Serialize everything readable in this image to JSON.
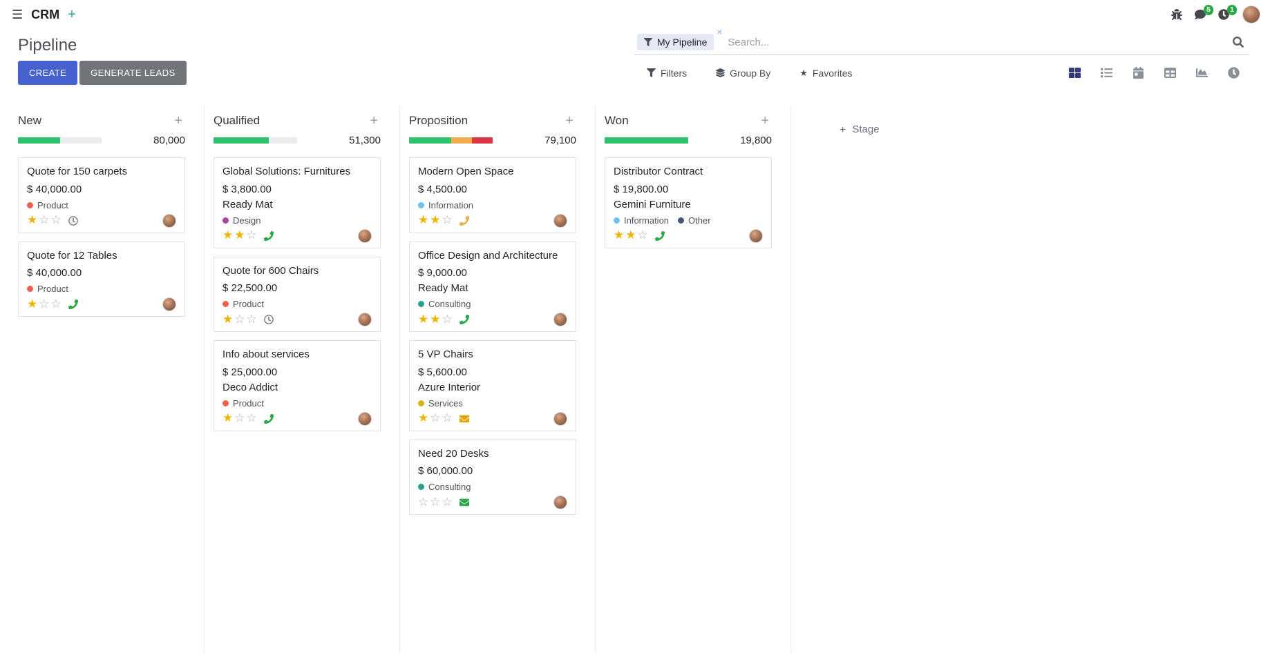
{
  "icons": {
    "menu": "☰",
    "plus": "+",
    "close": "×",
    "star_filled": "★",
    "star_empty": "☆"
  },
  "navbar": {
    "app_name": "CRM",
    "messages_badge": "5",
    "activities_badge": "1"
  },
  "control_panel": {
    "title": "Pipeline",
    "search": {
      "facet": "My Pipeline",
      "placeholder": "Search..."
    },
    "create_label": "CREATE",
    "generate_leads_label": "GENERATE LEADS",
    "filters_label": "Filters",
    "group_by_label": "Group By",
    "favorites_label": "Favorites"
  },
  "board": {
    "add_stage_label": "Stage",
    "columns": [
      {
        "name": "New",
        "total": "80,000",
        "progress": [
          {
            "color": "#2dc26b",
            "pct": 50
          }
        ],
        "cards": [
          {
            "title": "Quote for 150 carpets",
            "amount": "$ 40,000.00",
            "tags": [
              {
                "label": "Product",
                "color": "#f06050"
              }
            ],
            "stars": 1,
            "activity": {
              "type": "clock",
              "color": "#6e6e6e"
            }
          },
          {
            "title": "Quote for 12 Tables",
            "amount": "$ 40,000.00",
            "tags": [
              {
                "label": "Product",
                "color": "#f06050"
              }
            ],
            "stars": 1,
            "activity": {
              "type": "phone",
              "color": "#28a745"
            }
          }
        ]
      },
      {
        "name": "Qualified",
        "total": "51,300",
        "progress": [
          {
            "color": "#2dc26b",
            "pct": 66
          }
        ],
        "cards": [
          {
            "title": "Global Solutions: Furnitures",
            "amount": "$ 3,800.00",
            "partner": "Ready Mat",
            "tags": [
              {
                "label": "Design",
                "color": "#a9469c"
              }
            ],
            "stars": 2,
            "activity": {
              "type": "phone",
              "color": "#28a745"
            }
          },
          {
            "title": "Quote for 600 Chairs",
            "amount": "$ 22,500.00",
            "tags": [
              {
                "label": "Product",
                "color": "#f06050"
              }
            ],
            "stars": 1,
            "activity": {
              "type": "clock",
              "color": "#6e6e6e"
            }
          },
          {
            "title": "Info about services",
            "amount": "$ 25,000.00",
            "partner": "Deco Addict",
            "tags": [
              {
                "label": "Product",
                "color": "#f06050"
              }
            ],
            "stars": 1,
            "activity": {
              "type": "phone",
              "color": "#28a745"
            }
          }
        ]
      },
      {
        "name": "Proposition",
        "total": "79,100",
        "progress": [
          {
            "color": "#2dc26b",
            "pct": 50
          },
          {
            "color": "#f0ad4e",
            "pct": 25
          },
          {
            "color": "#dc3545",
            "pct": 25
          }
        ],
        "cards": [
          {
            "title": "Modern Open Space",
            "amount": "$ 4,500.00",
            "tags": [
              {
                "label": "Information",
                "color": "#6cc1ed"
              }
            ],
            "stars": 2,
            "activity": {
              "type": "phone",
              "color": "#f0ad4e"
            }
          },
          {
            "title": "Office Design and Architecture",
            "amount": "$ 9,000.00",
            "partner": "Ready Mat",
            "tags": [
              {
                "label": "Consulting",
                "color": "#2c9e8f"
              }
            ],
            "stars": 2,
            "activity": {
              "type": "phone",
              "color": "#28a745"
            }
          },
          {
            "title": "5 VP Chairs",
            "amount": "$ 5,600.00",
            "partner": "Azure Interior",
            "tags": [
              {
                "label": "Services",
                "color": "#d6b31f"
              }
            ],
            "stars": 1,
            "activity": {
              "type": "envelope",
              "color": "#e2a600"
            }
          },
          {
            "title": "Need 20 Desks",
            "amount": "$ 60,000.00",
            "tags": [
              {
                "label": "Consulting",
                "color": "#2c9e8f"
              }
            ],
            "stars": 0,
            "activity": {
              "type": "envelope",
              "color": "#28a745"
            }
          }
        ]
      },
      {
        "name": "Won",
        "total": "19,800",
        "progress": [
          {
            "color": "#2dc26b",
            "pct": 100
          }
        ],
        "cards": [
          {
            "title": "Distributor Contract",
            "amount": "$ 19,800.00",
            "partner": "Gemini Furniture",
            "tags": [
              {
                "label": "Information",
                "color": "#6cc1ed"
              },
              {
                "label": "Other",
                "color": "#475577"
              }
            ],
            "stars": 2,
            "activity": {
              "type": "phone",
              "color": "#28a745"
            }
          }
        ]
      }
    ]
  }
}
